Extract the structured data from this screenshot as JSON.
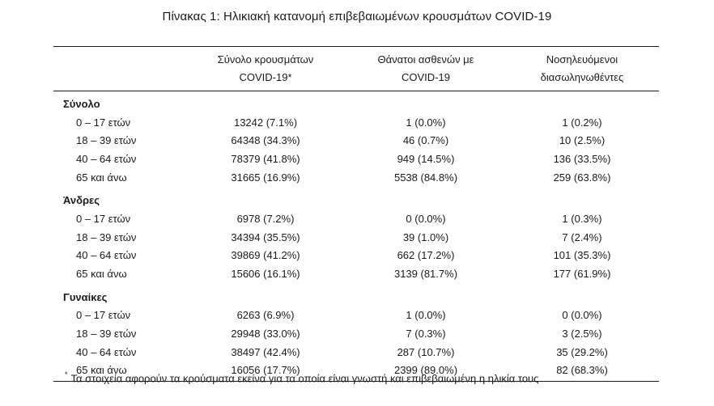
{
  "title": "Πίνακας 1: Ηλικιακή κατανομή επιβεβαιωμένων κρουσμάτων COVID-19",
  "headers": {
    "cases_line1": "Σύνολο κρουσμάτων",
    "cases_line2": "COVID-19*",
    "deaths_line1": "Θάνατοι ασθενών με",
    "deaths_line2": "COVID-19",
    "hosp_line1": "Νοσηλευόμενοι",
    "hosp_line2": "διασωληνωθέντες"
  },
  "groups": [
    {
      "name": "Σύνολο",
      "rows": [
        {
          "age": "0 – 17 ετών",
          "cases": "13242 (7.1%)",
          "deaths": "1 (0.0%)",
          "hosp": "1 (0.2%)"
        },
        {
          "age": "18 – 39 ετών",
          "cases": "64348 (34.3%)",
          "deaths": "46 (0.7%)",
          "hosp": "10 (2.5%)"
        },
        {
          "age": "40 – 64 ετών",
          "cases": "78379 (41.8%)",
          "deaths": "949 (14.5%)",
          "hosp": "136 (33.5%)"
        },
        {
          "age": "65 και άνω",
          "cases": "31665 (16.9%)",
          "deaths": "5538 (84.8%)",
          "hosp": "259 (63.8%)"
        }
      ]
    },
    {
      "name": "Άνδρες",
      "rows": [
        {
          "age": "0 – 17 ετών",
          "cases": "6978 (7.2%)",
          "deaths": "0 (0.0%)",
          "hosp": "1 (0.3%)"
        },
        {
          "age": "18 – 39 ετών",
          "cases": "34394 (35.5%)",
          "deaths": "39 (1.0%)",
          "hosp": "7 (2.4%)"
        },
        {
          "age": "40 – 64 ετών",
          "cases": "39869 (41.2%)",
          "deaths": "662 (17.2%)",
          "hosp": "101 (35.3%)"
        },
        {
          "age": "65 και άνω",
          "cases": "15606 (16.1%)",
          "deaths": "3139 (81.7%)",
          "hosp": "177 (61.9%)"
        }
      ]
    },
    {
      "name": "Γυναίκες",
      "rows": [
        {
          "age": "0 – 17 ετών",
          "cases": "6263 (6.9%)",
          "deaths": "1 (0.0%)",
          "hosp": "0 (0.0%)"
        },
        {
          "age": "18 – 39 ετών",
          "cases": "29948 (33.0%)",
          "deaths": "7 (0.3%)",
          "hosp": "3 (2.5%)"
        },
        {
          "age": "40 – 64 ετών",
          "cases": "38497 (42.4%)",
          "deaths": "287 (10.7%)",
          "hosp": "35 (29.2%)"
        },
        {
          "age": "65 και άνω",
          "cases": "16056 (17.7%)",
          "deaths": "2399 (89.0%)",
          "hosp": "82 (68.3%)"
        }
      ]
    }
  ],
  "footnote": {
    "marker": "*",
    "text": "Τα στοιχεία αφορούν τα κρούσματα εκείνα για τα οποία είναι γνωστή και επιβεβαιωμένη η ηλικία τους"
  }
}
